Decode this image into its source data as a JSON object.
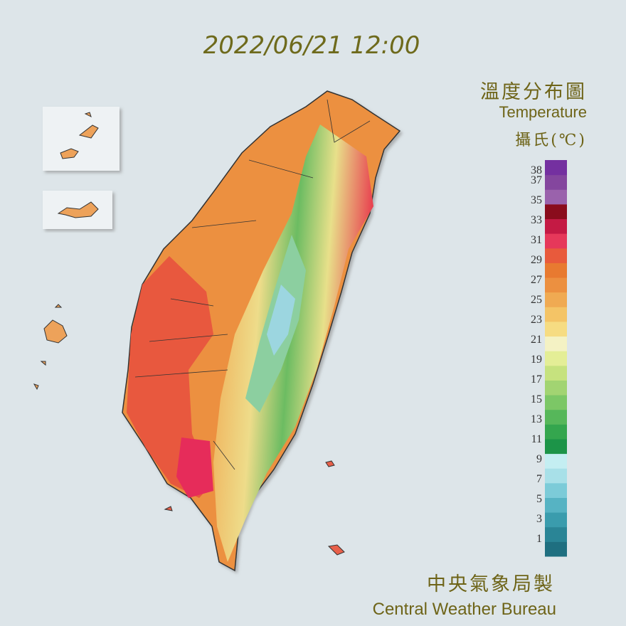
{
  "timestamp": "2022/06/21 12:00",
  "title": "溫度分布圖",
  "subtitle": "Temperature",
  "unit": "攝氏(℃)",
  "legend": {
    "labels": [
      38,
      37,
      35,
      33,
      31,
      29,
      27,
      25,
      23,
      21,
      19,
      17,
      15,
      13,
      11,
      9,
      7,
      5,
      3,
      1
    ],
    "colors": [
      "#1f6f80",
      "#2a8596",
      "#3a9cad",
      "#56b3c3",
      "#7ccbd8",
      "#a8e0e8",
      "#c4eef2",
      "#1c9448",
      "#34a64e",
      "#56b75a",
      "#7cc766",
      "#a2d472",
      "#c6e27e",
      "#e4ee96",
      "#f4f2c4",
      "#f6dc82",
      "#f4c466",
      "#f0aa52",
      "#ec9040",
      "#e87a30",
      "#e85a3c",
      "#e6385a",
      "#c41a44",
      "#8a0c1c",
      "#9a62ac",
      "#84469e",
      "#7430a0"
    ]
  },
  "agency": "中央氣象局製",
  "agency_en": "Central Weather Bureau"
}
